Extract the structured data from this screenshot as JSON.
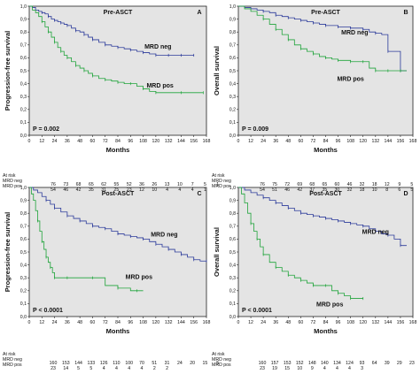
{
  "figure": {
    "months_label": "Months",
    "at_risk_header": "At risk",
    "colors": {
      "mrd_neg": "#2b3a9a",
      "mrd_pos": "#1fa33a",
      "plot_bg": "#e4e4e4",
      "frame": "#222222"
    },
    "x_ticks": [
      0,
      12,
      24,
      36,
      48,
      60,
      72,
      84,
      96,
      108,
      120,
      132,
      144,
      156,
      168
    ],
    "y_ticks": [
      "0,0",
      "0,1",
      "0,2",
      "0,3",
      "0,4",
      "0,5",
      "0,6",
      "0,7",
      "0,8",
      "0,9",
      "1,0"
    ]
  },
  "chart_data": [
    {
      "type": "line",
      "panel_letter": "A",
      "title": "Pre-ASCT",
      "xlabel": "Months",
      "ylabel": "Progression-free survival",
      "xlim": [
        0,
        168
      ],
      "ylim": [
        0,
        1.0
      ],
      "p_value": "P = 0.002",
      "series": [
        {
          "name": "MRD neg",
          "label_pos": [
            122,
            0.67
          ],
          "x": [
            0,
            3,
            6,
            9,
            12,
            15,
            18,
            21,
            24,
            27,
            30,
            33,
            36,
            40,
            44,
            48,
            52,
            56,
            60,
            66,
            72,
            78,
            84,
            90,
            96,
            102,
            108,
            114,
            120,
            126,
            132,
            138,
            144,
            150,
            156
          ],
          "y": [
            1.0,
            0.99,
            0.97,
            0.96,
            0.95,
            0.94,
            0.92,
            0.9,
            0.89,
            0.88,
            0.87,
            0.86,
            0.85,
            0.83,
            0.81,
            0.8,
            0.78,
            0.76,
            0.74,
            0.72,
            0.7,
            0.69,
            0.68,
            0.67,
            0.66,
            0.65,
            0.64,
            0.63,
            0.62,
            0.62,
            0.62,
            0.62,
            0.62,
            0.62,
            0.62
          ]
        },
        {
          "name": "MRD pos",
          "label_pos": [
            124,
            0.37
          ],
          "x": [
            0,
            3,
            6,
            9,
            12,
            15,
            18,
            21,
            24,
            27,
            30,
            33,
            36,
            40,
            44,
            48,
            52,
            56,
            60,
            66,
            72,
            78,
            84,
            90,
            96,
            102,
            108,
            114,
            120,
            132,
            144,
            156,
            165
          ],
          "y": [
            1.0,
            0.97,
            0.95,
            0.92,
            0.88,
            0.84,
            0.8,
            0.76,
            0.72,
            0.68,
            0.65,
            0.62,
            0.6,
            0.57,
            0.54,
            0.52,
            0.5,
            0.48,
            0.46,
            0.44,
            0.43,
            0.42,
            0.41,
            0.4,
            0.4,
            0.38,
            0.36,
            0.34,
            0.33,
            0.33,
            0.33,
            0.33,
            0.33
          ]
        }
      ],
      "at_risk": {
        "MRD neg": [
          "76",
          "73",
          "68",
          "65",
          "62",
          "55",
          "52",
          "36",
          "26",
          "13",
          "10",
          "7",
          "5",
          "1",
          ""
        ],
        "MRD pos": [
          "54",
          "46",
          "42",
          "35",
          "31",
          "25",
          "23",
          "12",
          "10",
          "4",
          "4",
          "4",
          "1",
          "",
          ""
        ]
      }
    },
    {
      "type": "line",
      "panel_letter": "B",
      "title": "Pre-ASCT",
      "xlabel": "Months",
      "ylabel": "Overall survival",
      "xlim": [
        0,
        168
      ],
      "ylim": [
        0,
        1.0
      ],
      "p_value": "P = 0.009",
      "series": [
        {
          "name": "MRD neg",
          "label_pos": [
            112,
            0.78
          ],
          "x": [
            0,
            6,
            12,
            18,
            24,
            30,
            36,
            42,
            48,
            54,
            60,
            66,
            72,
            78,
            84,
            90,
            96,
            102,
            108,
            114,
            120,
            126,
            132,
            138,
            144,
            150,
            156,
            162
          ],
          "y": [
            1.0,
            0.99,
            0.98,
            0.97,
            0.96,
            0.95,
            0.93,
            0.92,
            0.91,
            0.9,
            0.89,
            0.88,
            0.87,
            0.86,
            0.85,
            0.85,
            0.84,
            0.84,
            0.83,
            0.83,
            0.82,
            0.8,
            0.79,
            0.78,
            0.65,
            0.65,
            0.5,
            0.5
          ]
        },
        {
          "name": "MRD pos",
          "label_pos": [
            108,
            0.42
          ],
          "x": [
            0,
            6,
            12,
            18,
            24,
            30,
            36,
            42,
            48,
            54,
            60,
            66,
            72,
            78,
            84,
            90,
            96,
            102,
            108,
            114,
            120,
            126,
            132,
            138,
            144,
            150,
            156,
            162
          ],
          "y": [
            1.0,
            0.98,
            0.96,
            0.93,
            0.9,
            0.86,
            0.82,
            0.78,
            0.74,
            0.7,
            0.67,
            0.65,
            0.63,
            0.61,
            0.6,
            0.59,
            0.58,
            0.58,
            0.57,
            0.57,
            0.57,
            0.52,
            0.5,
            0.5,
            0.5,
            0.5,
            0.5,
            0.5
          ]
        }
      ],
      "at_risk": {
        "MRD neg": [
          "76",
          "75",
          "72",
          "69",
          "68",
          "65",
          "60",
          "46",
          "32",
          "18",
          "12",
          "9",
          "5",
          "",
          ""
        ],
        "MRD pos": [
          "54",
          "51",
          "46",
          "42",
          "37",
          "35",
          "30",
          "32",
          "18",
          "10",
          "8",
          "6",
          "5",
          "3",
          ""
        ]
      }
    },
    {
      "type": "line",
      "panel_letter": "C",
      "title": "Post-ASCT",
      "xlabel": "Months",
      "ylabel": "Progression-free survival",
      "xlim": [
        0,
        168
      ],
      "ylim": [
        0,
        1.0
      ],
      "p_value": "P < 0.0001",
      "series": [
        {
          "name": "MRD neg",
          "label_pos": [
            128,
            0.62
          ],
          "x": [
            0,
            4,
            8,
            12,
            16,
            20,
            24,
            30,
            36,
            42,
            48,
            54,
            60,
            66,
            72,
            78,
            84,
            90,
            96,
            102,
            108,
            114,
            120,
            126,
            132,
            138,
            144,
            150,
            156,
            162,
            168
          ],
          "y": [
            1.0,
            0.98,
            0.96,
            0.93,
            0.9,
            0.87,
            0.84,
            0.81,
            0.78,
            0.76,
            0.74,
            0.72,
            0.7,
            0.69,
            0.68,
            0.66,
            0.64,
            0.63,
            0.62,
            0.61,
            0.6,
            0.58,
            0.56,
            0.54,
            0.52,
            0.5,
            0.48,
            0.46,
            0.44,
            0.43,
            0.43
          ]
        },
        {
          "name": "MRD pos",
          "label_pos": [
            104,
            0.29
          ],
          "x": [
            0,
            2,
            4,
            6,
            8,
            10,
            12,
            14,
            16,
            18,
            20,
            22,
            24,
            30,
            36,
            48,
            60,
            72,
            84,
            96,
            102,
            108
          ],
          "y": [
            1.0,
            0.95,
            0.9,
            0.82,
            0.74,
            0.66,
            0.58,
            0.52,
            0.46,
            0.42,
            0.38,
            0.34,
            0.3,
            0.3,
            0.3,
            0.3,
            0.3,
            0.24,
            0.22,
            0.2,
            0.2,
            0.2
          ]
        }
      ],
      "at_risk": {
        "MRD neg": [
          "160",
          "153",
          "144",
          "133",
          "126",
          "110",
          "100",
          "70",
          "51",
          "31",
          "24",
          "20",
          "15",
          "5",
          ""
        ],
        "MRD pos": [
          "23",
          "14",
          "5",
          "5",
          "4",
          "4",
          "4",
          "4",
          "2",
          "2",
          "",
          "",
          "",
          "",
          ""
        ]
      }
    },
    {
      "type": "line",
      "panel_letter": "D",
      "title": "Post-ASCT",
      "xlabel": "Months",
      "ylabel": "Overall survival",
      "xlim": [
        0,
        168
      ],
      "ylim": [
        0,
        1.0
      ],
      "p_value": "P < 0.0001",
      "series": [
        {
          "name": "MRD neg",
          "label_pos": [
            132,
            0.64
          ],
          "x": [
            0,
            6,
            12,
            18,
            24,
            30,
            36,
            42,
            48,
            54,
            60,
            66,
            72,
            78,
            84,
            90,
            96,
            102,
            108,
            114,
            120,
            126,
            132,
            138,
            144,
            150,
            156,
            162
          ],
          "y": [
            1.0,
            0.98,
            0.96,
            0.94,
            0.92,
            0.9,
            0.88,
            0.86,
            0.84,
            0.82,
            0.8,
            0.79,
            0.78,
            0.77,
            0.76,
            0.75,
            0.74,
            0.73,
            0.72,
            0.71,
            0.7,
            0.68,
            0.66,
            0.64,
            0.63,
            0.6,
            0.55,
            0.55
          ]
        },
        {
          "name": "MRD pos",
          "label_pos": [
            88,
            0.08
          ],
          "x": [
            0,
            3,
            6,
            9,
            12,
            15,
            18,
            21,
            24,
            30,
            36,
            42,
            48,
            54,
            60,
            66,
            72,
            78,
            84,
            90,
            96,
            102,
            108,
            114,
            120
          ],
          "y": [
            1.0,
            0.95,
            0.88,
            0.8,
            0.72,
            0.66,
            0.6,
            0.54,
            0.48,
            0.42,
            0.38,
            0.35,
            0.32,
            0.3,
            0.28,
            0.26,
            0.24,
            0.24,
            0.24,
            0.2,
            0.18,
            0.16,
            0.14,
            0.14,
            0.14
          ]
        }
      ],
      "at_risk": {
        "MRD neg": [
          "160",
          "157",
          "153",
          "152",
          "148",
          "140",
          "134",
          "124",
          "93",
          "64",
          "39",
          "29",
          "23",
          "4",
          "1"
        ],
        "MRD pos": [
          "23",
          "19",
          "15",
          "10",
          "9",
          "4",
          "4",
          "4",
          "3",
          "",
          "",
          "",
          "",
          "",
          ""
        ]
      }
    }
  ]
}
